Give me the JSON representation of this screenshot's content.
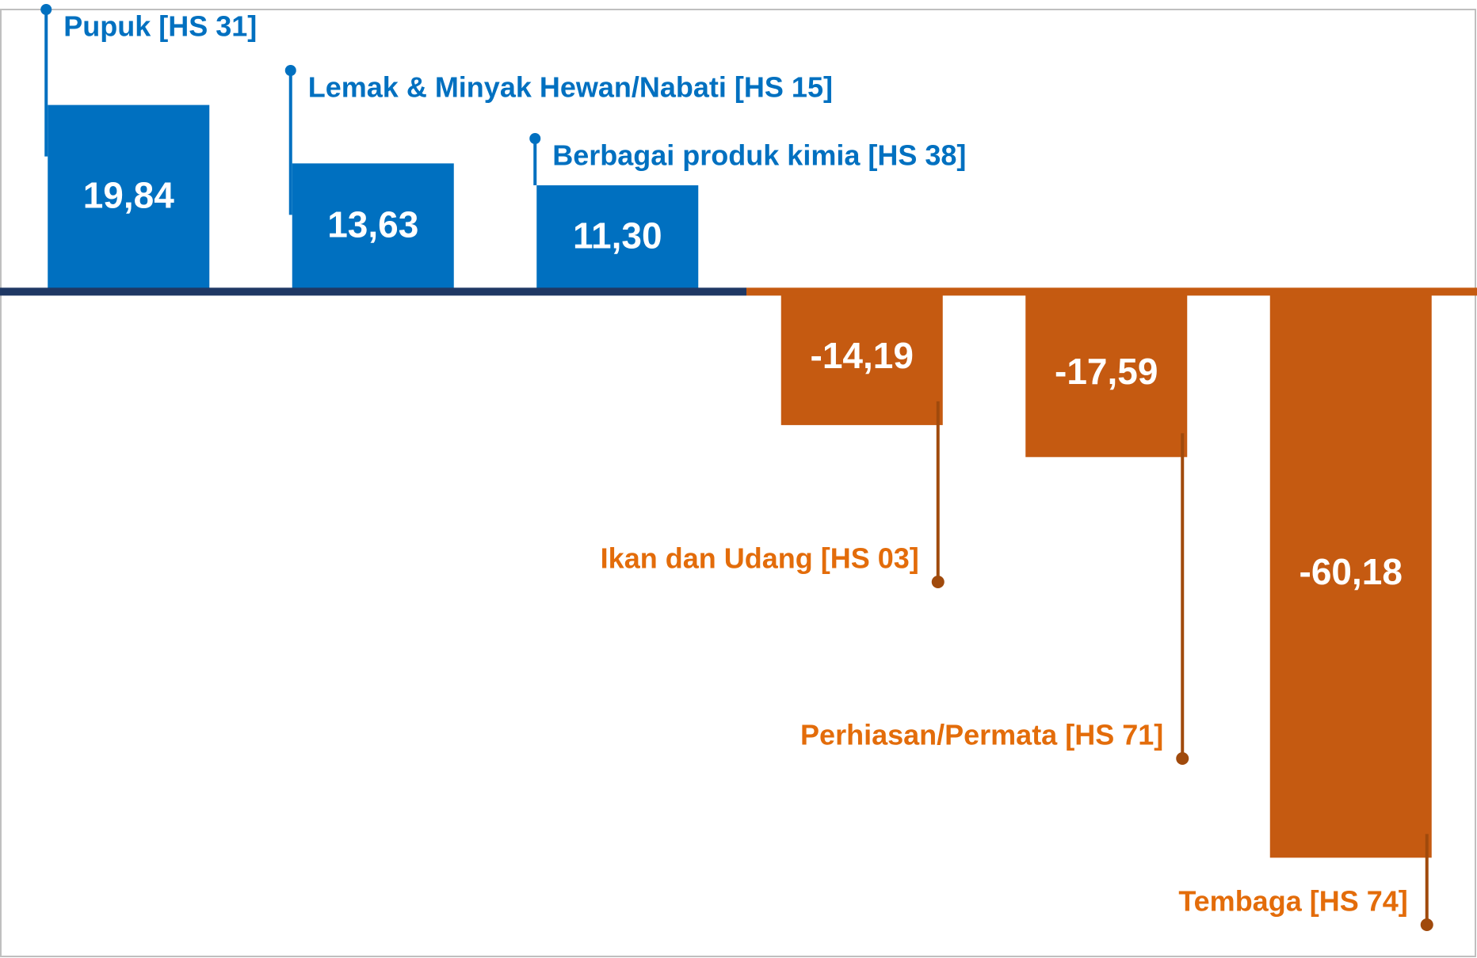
{
  "chart_data": {
    "type": "bar",
    "categories": [
      "Pupuk [HS 31]",
      "Lemak & Minyak Hewan/Nabati [HS 15]",
      "Berbagai produk kimia [HS 38]",
      "Ikan dan Udang [HS 03]",
      "Perhiasan/Permata [HS 71]",
      "Tembaga [HS 74]"
    ],
    "values": [
      19.84,
      13.63,
      11.3,
      -14.19,
      -17.59,
      -60.18
    ],
    "value_labels": [
      "19,84",
      "13,63",
      "11,30",
      "-14,19",
      "-17,59",
      "-60,18"
    ],
    "positive_color": "#0070c0",
    "negative_color": "#c55a11",
    "ylim": [
      -70,
      31
    ]
  }
}
